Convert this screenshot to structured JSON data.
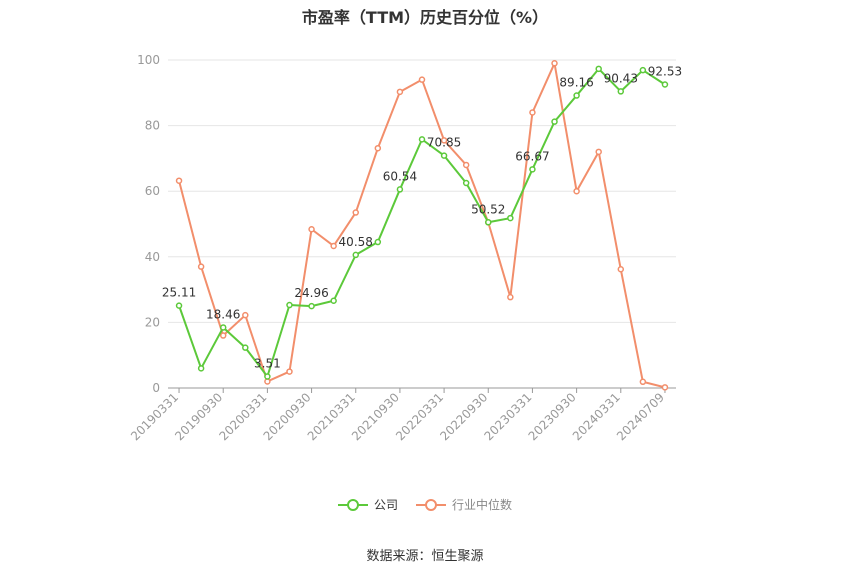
{
  "chart_data": {
    "type": "line",
    "title": "市盈率（TTM）历史百分位（%）",
    "xlabel": "",
    "ylabel": "",
    "ylim": [
      0,
      100
    ],
    "yticks": [
      0,
      20,
      40,
      60,
      80,
      100
    ],
    "grid": true,
    "legend_position": "bottom",
    "tick_labels": [
      "20190331",
      "20190930",
      "20200331",
      "20200930",
      "20210331",
      "20210930",
      "20220331",
      "20220930",
      "20230331",
      "20230930",
      "20240331",
      "20240709"
    ],
    "series": [
      {
        "name": "公司",
        "color": "#5cc93a",
        "values": [
          25.11,
          6.0,
          18.46,
          12.3,
          3.51,
          25.3,
          24.96,
          26.6,
          40.58,
          44.5,
          60.54,
          75.8,
          70.85,
          62.5,
          50.52,
          51.8,
          66.67,
          81.2,
          89.16,
          97.3,
          90.43,
          96.9,
          92.53
        ],
        "labels": {
          "0": "25.11",
          "2": "18.46",
          "4": "3.51",
          "6": "24.96",
          "8": "40.58",
          "10": "60.54",
          "12": "70.85",
          "14": "50.52",
          "16": "66.67",
          "18": "89.16",
          "20": "90.43",
          "22": "92.53"
        }
      },
      {
        "name": "行业中位数",
        "color": "#f28e6b",
        "values": [
          63.2,
          37.0,
          16.0,
          22.2,
          2.0,
          5.0,
          48.4,
          43.3,
          53.5,
          73.1,
          90.3,
          94.0,
          75.5,
          68.0,
          50.5,
          27.7,
          84.0,
          99.0,
          60.0,
          72.0,
          36.2,
          1.9,
          0.2
        ]
      }
    ]
  },
  "legend": {
    "company": "公司",
    "industry": "行业中位数"
  },
  "source": "数据来源：恒生聚源"
}
